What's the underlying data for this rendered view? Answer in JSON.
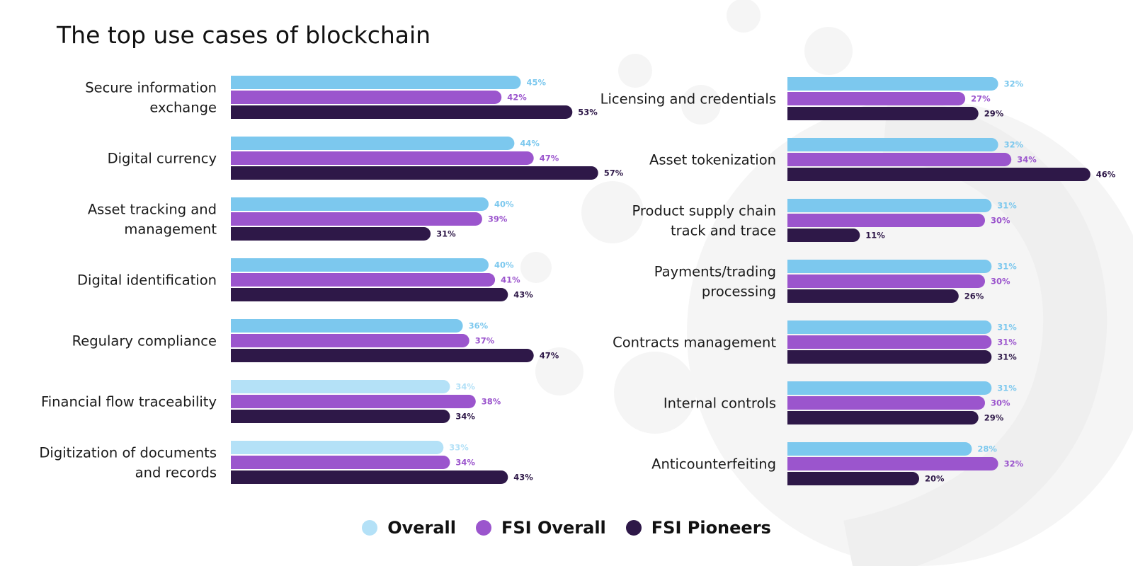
{
  "title": "The top use cases of blockchain",
  "colors": {
    "overall": "#7cc8ee",
    "overall_light": "#b4e1f7",
    "fsi_overall": "#9b55cd",
    "fsi_pioneers": "#2e1848",
    "background_shapes": "#f5f5f5"
  },
  "legend": {
    "items": [
      {
        "label": "Overall",
        "color": "#b4e1f7"
      },
      {
        "label": "FSI Overall",
        "color": "#9b55cd"
      },
      {
        "label": "FSI Pioneers",
        "color": "#2e1848"
      }
    ]
  },
  "chart_data": [
    {
      "type": "bar",
      "orientation": "horizontal",
      "categories": [
        "Secure information exchange",
        "Digital currency",
        "Asset tracking and management",
        "Digital identification",
        "Regulary compliance",
        "Financial flow traceability",
        "Digitization of documents and records"
      ],
      "series": [
        {
          "name": "Overall",
          "values": [
            45,
            44,
            40,
            40,
            36,
            34,
            33
          ]
        },
        {
          "name": "FSI Overall",
          "values": [
            42,
            47,
            39,
            41,
            37,
            38,
            34
          ]
        },
        {
          "name": "FSI Pioneers",
          "values": [
            53,
            57,
            31,
            43,
            47,
            34,
            43
          ]
        }
      ],
      "value_suffix": "%",
      "xlim": [
        0,
        100
      ]
    },
    {
      "type": "bar",
      "orientation": "horizontal",
      "categories": [
        "Licensing and credentials",
        "Asset tokenization",
        "Product supply chain track and trace",
        "Payments/trading processing",
        "Contracts management",
        "Internal controls",
        "Anticounterfeiting"
      ],
      "series": [
        {
          "name": "Overall",
          "values": [
            32,
            32,
            31,
            31,
            31,
            31,
            28
          ]
        },
        {
          "name": "FSI Overall",
          "values": [
            27,
            34,
            30,
            30,
            31,
            30,
            32
          ]
        },
        {
          "name": "FSI Pioneers",
          "values": [
            29,
            46,
            11,
            26,
            31,
            29,
            20
          ]
        }
      ],
      "value_suffix": "%",
      "xlim": [
        0,
        100
      ]
    }
  ]
}
